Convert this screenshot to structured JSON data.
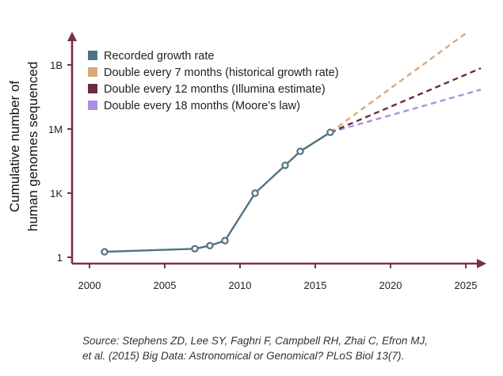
{
  "chart_data": {
    "type": "line",
    "xlabel": "",
    "ylabel": [
      "Cumulative number of",
      "human genomes sequenced"
    ],
    "y_scale": "log",
    "xlim": [
      1997.5,
      2026.5
    ],
    "x_ticks": [
      2000,
      2005,
      2010,
      2015,
      2020,
      2025
    ],
    "y_ticks": [
      {
        "value": 1,
        "label": "1"
      },
      {
        "value": 1000,
        "label": "1K"
      },
      {
        "value": 1000000,
        "label": "1M"
      },
      {
        "value": 1000000000,
        "label": "1B"
      }
    ],
    "legend_position": "top-left",
    "series": [
      {
        "name": "Recorded growth rate",
        "color": "#4f7383",
        "style": "solid-markers",
        "points": [
          {
            "x": 2001,
            "y": 1.8
          },
          {
            "x": 2007,
            "y": 2.5
          },
          {
            "x": 2008,
            "y": 3.5
          },
          {
            "x": 2009,
            "y": 6
          },
          {
            "x": 2011,
            "y": 1000
          },
          {
            "x": 2013,
            "y": 20000
          },
          {
            "x": 2014,
            "y": 90000
          },
          {
            "x": 2016,
            "y": 700000
          }
        ]
      },
      {
        "name": "Double every 7 months (historical growth rate)",
        "color": "#d9a97b",
        "style": "dashed",
        "points": [
          {
            "x": 2016,
            "y": 700000
          },
          {
            "x": 2025,
            "y": 30000000000
          }
        ]
      },
      {
        "name": "Double every 12 months (Illumina estimate)",
        "color": "#6e2a3f",
        "style": "dashed",
        "points": [
          {
            "x": 2016,
            "y": 700000
          },
          {
            "x": 2026,
            "y": 700000000
          }
        ]
      },
      {
        "name": "Double every 18 months (Moore's law)",
        "color": "#a98fe6",
        "style": "dashed",
        "points": [
          {
            "x": 2016,
            "y": 700000
          },
          {
            "x": 2026,
            "y": 70000000
          }
        ]
      }
    ]
  },
  "legend": [
    {
      "label": "Recorded growth rate",
      "color": "#4f7383"
    },
    {
      "label": "Double every 7 months (historical growth rate)",
      "color": "#d9a97b"
    },
    {
      "label": "Double every 12 months (Illumina estimate)",
      "color": "#6e2a3f"
    },
    {
      "label": "Double every 18 months (Moore’s law)",
      "color": "#a98fe6"
    }
  ],
  "source": {
    "line1": "Source: Stephens ZD, Lee SY, Faghri F, Campbell RH, Zhai C, Efron MJ,",
    "line2": "et al. (2015) Big Data: Astronomical or Genomical? PLoS Biol 13(7)."
  },
  "axis_color": "#7a2f47"
}
